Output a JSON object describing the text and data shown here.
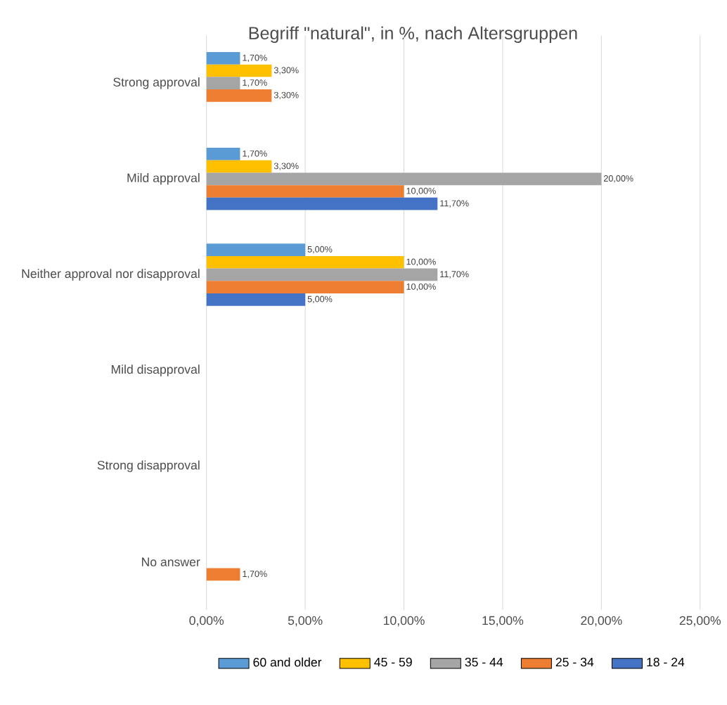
{
  "chart_data": {
    "type": "bar",
    "orientation": "horizontal",
    "title": "Begriff \"natural\", in %, nach Altersgruppen",
    "categories": [
      "Strong approval",
      "Mild approval",
      "Neither approval nor disapproval",
      "Mild disapproval",
      "Strong disapproval",
      "No answer"
    ],
    "series": [
      {
        "name": "60 and older",
        "color": "#5b9bd5",
        "values": [
          1.7,
          1.7,
          5.0,
          null,
          null,
          null
        ],
        "value_labels": [
          "1,70%",
          "1,70%",
          "5,00%",
          null,
          null,
          null
        ]
      },
      {
        "name": "45 - 59",
        "color": "#ffc000",
        "values": [
          3.3,
          3.3,
          10.0,
          null,
          null,
          null
        ],
        "value_labels": [
          "3,30%",
          "3,30%",
          "10,00%",
          null,
          null,
          null
        ]
      },
      {
        "name": "35 - 44",
        "color": "#a5a5a5",
        "values": [
          1.7,
          20.0,
          11.7,
          null,
          null,
          null
        ],
        "value_labels": [
          "1,70%",
          "20,00%",
          "11,70%",
          null,
          null,
          null
        ]
      },
      {
        "name": "25 - 34",
        "color": "#ed7d31",
        "values": [
          3.3,
          10.0,
          10.0,
          null,
          null,
          1.7
        ],
        "value_labels": [
          "3,30%",
          "10,00%",
          "10,00%",
          null,
          null,
          "1,70%"
        ]
      },
      {
        "name": "18 - 24",
        "color": "#4472c4",
        "values": [
          null,
          11.7,
          5.0,
          null,
          null,
          null
        ],
        "value_labels": [
          null,
          "11,70%",
          "5,00%",
          null,
          null,
          null
        ]
      }
    ],
    "xlim": [
      0,
      25
    ],
    "xticks": [
      {
        "value": 0,
        "label": "0,00%"
      },
      {
        "value": 5,
        "label": "5,00%"
      },
      {
        "value": 10,
        "label": "10,00%"
      },
      {
        "value": 15,
        "label": "15,00%"
      },
      {
        "value": 20,
        "label": "20,00%"
      },
      {
        "value": 25,
        "label": "25,00%"
      }
    ],
    "grid": "x",
    "legend": "bottom"
  }
}
